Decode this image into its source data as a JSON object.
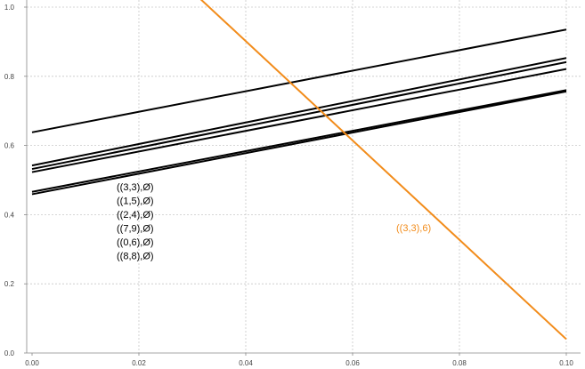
{
  "chart_data": {
    "type": "line",
    "xlim": [
      0,
      0.1
    ],
    "ylim": [
      0,
      1.0
    ],
    "x_ticks": [
      "0.00",
      "0.02",
      "0.04",
      "0.06",
      "0.08",
      "0.10"
    ],
    "y_ticks": [
      "0.0",
      "0.2",
      "0.4",
      "0.6",
      "0.8",
      "1.0"
    ],
    "grid": true,
    "x": [
      0,
      0.1
    ],
    "series": [
      {
        "name": "",
        "color": "#000000",
        "values": [
          0.638,
          0.935
        ]
      },
      {
        "name": "",
        "color": "#000000",
        "values": [
          0.542,
          0.853
        ]
      },
      {
        "name": "",
        "color": "#000000",
        "values": [
          0.532,
          0.841
        ]
      },
      {
        "name": "",
        "color": "#000000",
        "values": [
          0.523,
          0.821
        ]
      },
      {
        "name": "",
        "color": "#000000",
        "values": [
          0.466,
          0.76
        ]
      },
      {
        "name": "",
        "color": "#000000",
        "values": [
          0.459,
          0.756
        ]
      },
      {
        "name": "",
        "color": "#f28c1b",
        "values": [
          1.476,
          0.04
        ]
      }
    ],
    "black_labels": [
      "((3,3),Ø)",
      "((1,5),Ø)",
      "((2,4),Ø)",
      "((7,9),Ø)",
      "((0,6),Ø)",
      "((8,8),Ø)"
    ],
    "orange_label": "((3,3),6)",
    "colors": {
      "black": "#000000",
      "orange": "#f28c1b",
      "grid": "#c8c8c8",
      "axis": "#888888"
    }
  }
}
